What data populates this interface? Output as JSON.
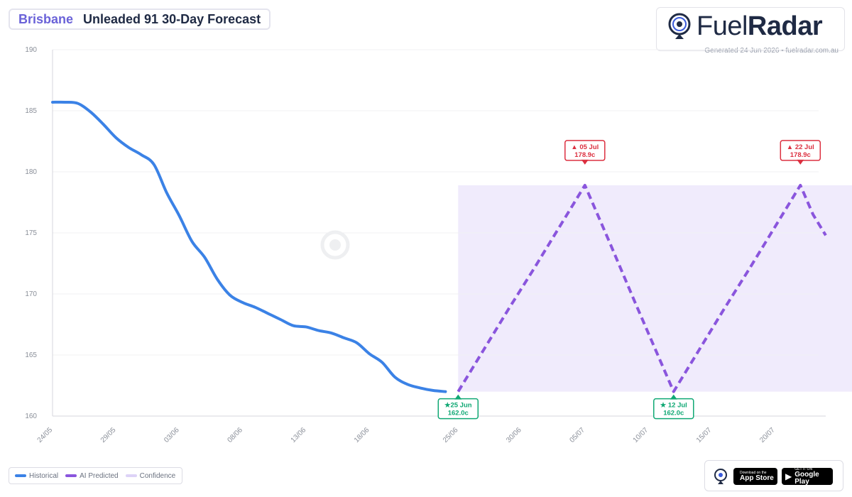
{
  "header": {
    "city": "Brisbane",
    "title": "Unleaded 91 30-Day Forecast"
  },
  "brand": {
    "name_part1": "Fuel",
    "name_part2": "Radar",
    "generated": "Generated 24 Jun 2026 • fuelradar.com.au"
  },
  "legend": {
    "historical": "Historical",
    "predicted": "AI Predicted",
    "confidence": "Confidence"
  },
  "stores": {
    "app_store_small": "Download on the",
    "app_store": "App Store",
    "google_play_small": "GET IT ON",
    "google_play": "Google Play"
  },
  "colors": {
    "historical": "#3b82e6",
    "predicted": "#8a55dd",
    "confidence": "#ede8fb",
    "low_marker": "#10a874",
    "high_marker": "#dc3040"
  },
  "chart_data": {
    "type": "line",
    "x_label": "",
    "y_label": "",
    "ylim": [
      160,
      190
    ],
    "y_ticks": [
      160,
      165,
      170,
      175,
      180,
      185,
      190
    ],
    "x_ticks": [
      "24/05",
      "29/05",
      "03/06",
      "08/06",
      "13/06",
      "18/06",
      "25/06",
      "30/06",
      "05/07",
      "10/07",
      "15/07",
      "20/07"
    ],
    "grid": true,
    "legend_position": "bottom-left",
    "confidence_band": {
      "from": "25/06",
      "to": "27/07",
      "low": 162.0,
      "high": 178.9
    },
    "series": [
      {
        "name": "Historical",
        "style": "solid",
        "points": [
          [
            "24/05",
            185.7
          ],
          [
            "25/05",
            185.7
          ],
          [
            "26/05",
            185.6
          ],
          [
            "27/05",
            184.9
          ],
          [
            "28/05",
            183.9
          ],
          [
            "29/05",
            182.8
          ],
          [
            "30/05",
            182.0
          ],
          [
            "31/05",
            181.4
          ],
          [
            "01/06",
            180.6
          ],
          [
            "02/06",
            178.3
          ],
          [
            "03/06",
            176.4
          ],
          [
            "04/06",
            174.3
          ],
          [
            "05/06",
            173.0
          ],
          [
            "06/06",
            171.2
          ],
          [
            "07/06",
            169.9
          ],
          [
            "08/06",
            169.3
          ],
          [
            "09/06",
            168.9
          ],
          [
            "10/06",
            168.4
          ],
          [
            "11/06",
            167.9
          ],
          [
            "12/06",
            167.4
          ],
          [
            "13/06",
            167.3
          ],
          [
            "14/06",
            167.0
          ],
          [
            "15/06",
            166.8
          ],
          [
            "16/06",
            166.4
          ],
          [
            "17/06",
            166.0
          ],
          [
            "18/06",
            165.1
          ],
          [
            "19/06",
            164.4
          ],
          [
            "20/06",
            163.2
          ],
          [
            "21/06",
            162.6
          ],
          [
            "22/06",
            162.3
          ],
          [
            "23/06",
            162.1
          ],
          [
            "24/06",
            162.0
          ]
        ]
      },
      {
        "name": "AI Predicted",
        "style": "dashed",
        "points": [
          [
            "25/06",
            162.0
          ],
          [
            "27/06",
            165.4
          ],
          [
            "29/06",
            168.8
          ],
          [
            "01/07",
            172.1
          ],
          [
            "03/07",
            175.5
          ],
          [
            "05/07",
            178.9
          ],
          [
            "07/07",
            174.1
          ],
          [
            "09/07",
            169.2
          ],
          [
            "11/07",
            164.4
          ],
          [
            "12/07",
            162.0
          ],
          [
            "14/07",
            165.4
          ],
          [
            "16/07",
            168.8
          ],
          [
            "18/07",
            172.1
          ],
          [
            "20/07",
            175.5
          ],
          [
            "22/07",
            178.9
          ],
          [
            "23/07",
            176.5
          ],
          [
            "24/07",
            174.8
          ]
        ]
      }
    ],
    "annotations": [
      {
        "kind": "low",
        "date": "25/06",
        "value": 162.0,
        "label": "★25 Jun",
        "price": "162.0c"
      },
      {
        "kind": "high",
        "date": "05/07",
        "value": 178.9,
        "label": "▲ 05 Jul",
        "price": "178.9c"
      },
      {
        "kind": "low",
        "date": "12/07",
        "value": 162.0,
        "label": "★ 12 Jul",
        "price": "162.0c"
      },
      {
        "kind": "high",
        "date": "22/07",
        "value": 178.9,
        "label": "▲ 22 Jul",
        "price": "178.9c"
      }
    ]
  }
}
